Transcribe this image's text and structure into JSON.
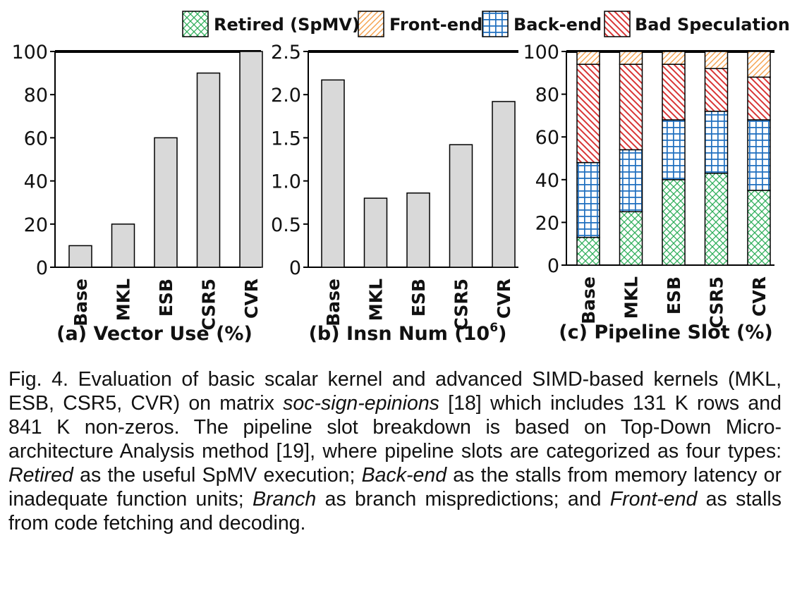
{
  "legend": [
    {
      "label": "Retired (SpMV)",
      "pattern": "retired"
    },
    {
      "label": "Front-end",
      "pattern": "frontend"
    },
    {
      "label": "Back-end",
      "pattern": "backend"
    },
    {
      "label": "Bad Speculation",
      "pattern": "badspec"
    }
  ],
  "colors": {
    "bar_fill": "#d9d9d9",
    "retired": "#2fae5a",
    "frontend": "#f5a04a",
    "backend": "#1f6fbf",
    "badspec": "#d93535"
  },
  "chart_data": [
    {
      "type": "bar",
      "title": "(a) Vector Use (%)",
      "categories": [
        "Base",
        "MKL",
        "ESB",
        "CSR5",
        "CVR"
      ],
      "values": [
        10,
        20,
        60,
        90,
        100
      ],
      "ylim": [
        0,
        100
      ],
      "yticks": [
        0,
        20,
        40,
        60,
        80,
        100
      ],
      "ytick_labels": [
        "0",
        "20",
        "40",
        "60",
        "80",
        "100"
      ]
    },
    {
      "type": "bar",
      "title": "(b) Insn Num (10",
      "title_sup": "6",
      "title_end": ")",
      "categories": [
        "Base",
        "MKL",
        "ESB",
        "CSR5",
        "CVR"
      ],
      "values": [
        2.17,
        0.8,
        0.86,
        1.42,
        1.92
      ],
      "ylim": [
        0,
        2.5
      ],
      "yticks": [
        0,
        0.5,
        1.0,
        1.5,
        2.0,
        2.5
      ],
      "ytick_labels": [
        "0",
        "0.5",
        "1.0",
        "1.5",
        "2.0",
        "2.5"
      ]
    },
    {
      "type": "bar",
      "stacked": true,
      "title": "(c) Pipeline Slot (%)",
      "categories": [
        "Base",
        "MKL",
        "ESB",
        "CSR5",
        "CVR"
      ],
      "series": [
        {
          "name": "Retired (SpMV)",
          "pattern": "retired",
          "values": [
            13,
            25,
            40,
            43,
            35
          ]
        },
        {
          "name": "Back-end",
          "pattern": "backend",
          "values": [
            35,
            29,
            28,
            29,
            33
          ]
        },
        {
          "name": "Bad Speculation",
          "pattern": "badspec",
          "values": [
            46,
            40,
            26,
            20,
            20
          ]
        },
        {
          "name": "Front-end",
          "pattern": "frontend",
          "values": [
            6,
            6,
            6,
            8,
            12
          ]
        }
      ],
      "ylim": [
        0,
        100
      ],
      "yticks": [
        0,
        20,
        40,
        60,
        80,
        100
      ],
      "ytick_labels": [
        "0",
        "20",
        "40",
        "60",
        "80",
        "100"
      ]
    }
  ],
  "caption": {
    "prefix": "Fig. 4. Evaluation of basic scalar kernel and advanced SIMD-based kernels (MKL, ESB, CSR5, CVR) on matrix ",
    "matrix": "soc-sign-epinions",
    "mid1": " [18] which includes 131 K rows and 841 K non-zeros. The pipeline slot breakdown is based on Top-Down Micro-architecture Analysis method [19], where pipeline slots are categorized as four types: ",
    "retired": "Retired",
    "mid2": " as the useful SpMV execution; ",
    "backend": "Back-end",
    "mid3": " as the stalls from memory latency or inadequate function units; ",
    "branch": "Branch",
    "mid4": " as branch mispredictions; and ",
    "frontend": "Front-end",
    "suffix": " as stalls from code fetching and decoding."
  }
}
